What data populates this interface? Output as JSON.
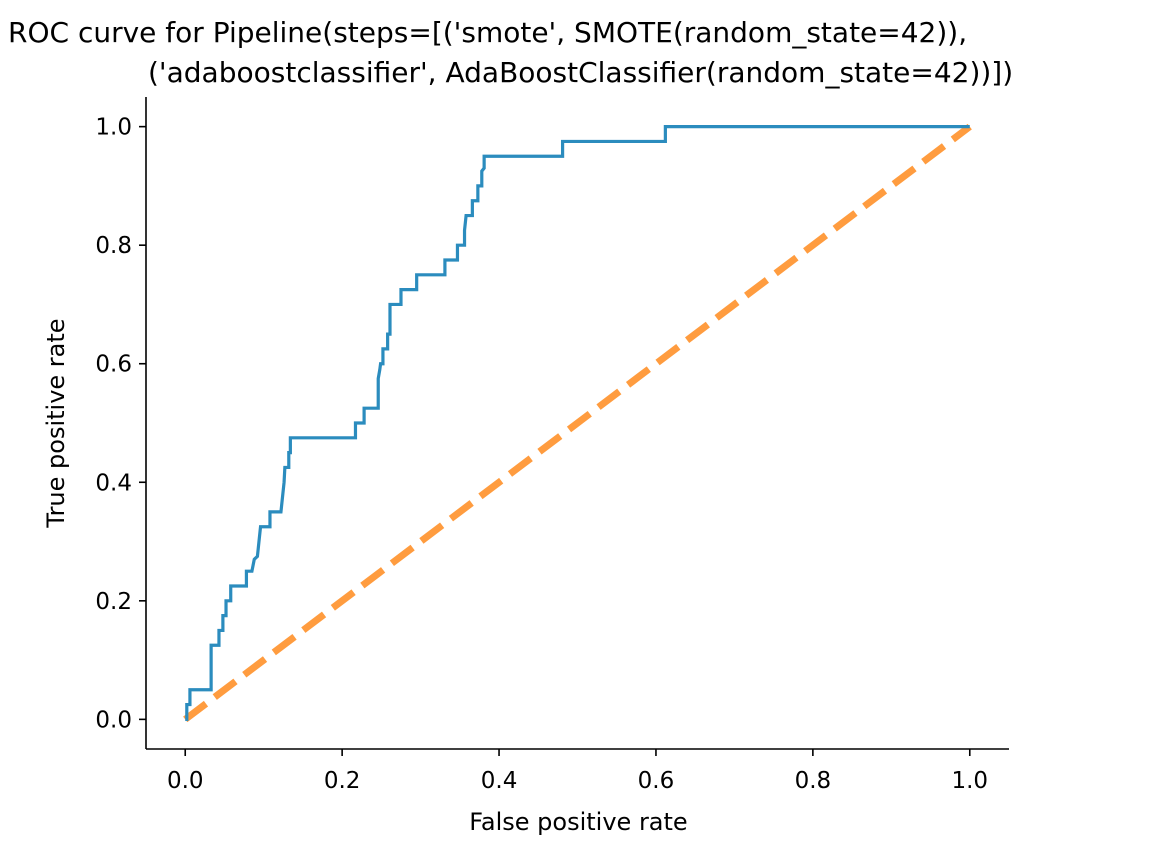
{
  "chart_data": {
    "type": "line",
    "title_lines": [
      "ROC curve for Pipeline(steps=[('smote', SMOTE(random_state=42)),",
      "('adaboostclassifier', AdaBoostClassifier(random_state=42))])"
    ],
    "xlabel": "False positive rate",
    "ylabel": "True positive rate",
    "xlim": [
      -0.05,
      1.05
    ],
    "ylim": [
      -0.05,
      1.05
    ],
    "xticks": [
      0.0,
      0.2,
      0.4,
      0.6,
      0.8,
      1.0
    ],
    "yticks": [
      0.0,
      0.2,
      0.4,
      0.6,
      0.8,
      1.0
    ],
    "tick_labels": [
      "0.0",
      "0.2",
      "0.4",
      "0.6",
      "0.8",
      "1.0"
    ],
    "grid": false,
    "series": [
      {
        "color": "#2b8cbe",
        "style": "solid",
        "points": [
          [
            0.0,
            0.0
          ],
          [
            0.002,
            0.0
          ],
          [
            0.002,
            0.025
          ],
          [
            0.006,
            0.025
          ],
          [
            0.006,
            0.05
          ],
          [
            0.033,
            0.05
          ],
          [
            0.033,
            0.125
          ],
          [
            0.043,
            0.125
          ],
          [
            0.043,
            0.15
          ],
          [
            0.048,
            0.15
          ],
          [
            0.048,
            0.175
          ],
          [
            0.052,
            0.175
          ],
          [
            0.052,
            0.2
          ],
          [
            0.058,
            0.2
          ],
          [
            0.058,
            0.225
          ],
          [
            0.078,
            0.225
          ],
          [
            0.078,
            0.25
          ],
          [
            0.085,
            0.25
          ],
          [
            0.088,
            0.27
          ],
          [
            0.092,
            0.275
          ],
          [
            0.094,
            0.3
          ],
          [
            0.096,
            0.325
          ],
          [
            0.108,
            0.325
          ],
          [
            0.108,
            0.35
          ],
          [
            0.122,
            0.35
          ],
          [
            0.124,
            0.375
          ],
          [
            0.126,
            0.4
          ],
          [
            0.127,
            0.425
          ],
          [
            0.132,
            0.425
          ],
          [
            0.132,
            0.45
          ],
          [
            0.134,
            0.45
          ],
          [
            0.134,
            0.475
          ],
          [
            0.217,
            0.475
          ],
          [
            0.217,
            0.5
          ],
          [
            0.228,
            0.5
          ],
          [
            0.228,
            0.525
          ],
          [
            0.246,
            0.525
          ],
          [
            0.246,
            0.575
          ],
          [
            0.248,
            0.59
          ],
          [
            0.249,
            0.6
          ],
          [
            0.252,
            0.6
          ],
          [
            0.252,
            0.625
          ],
          [
            0.258,
            0.625
          ],
          [
            0.258,
            0.65
          ],
          [
            0.261,
            0.65
          ],
          [
            0.261,
            0.7
          ],
          [
            0.275,
            0.7
          ],
          [
            0.275,
            0.725
          ],
          [
            0.295,
            0.725
          ],
          [
            0.295,
            0.75
          ],
          [
            0.331,
            0.75
          ],
          [
            0.331,
            0.775
          ],
          [
            0.347,
            0.775
          ],
          [
            0.347,
            0.8
          ],
          [
            0.356,
            0.8
          ],
          [
            0.356,
            0.825
          ],
          [
            0.358,
            0.85
          ],
          [
            0.366,
            0.85
          ],
          [
            0.366,
            0.875
          ],
          [
            0.373,
            0.875
          ],
          [
            0.373,
            0.9
          ],
          [
            0.378,
            0.9
          ],
          [
            0.378,
            0.925
          ],
          [
            0.381,
            0.93
          ],
          [
            0.381,
            0.95
          ],
          [
            0.481,
            0.95
          ],
          [
            0.481,
            0.975
          ],
          [
            0.612,
            0.975
          ],
          [
            0.612,
            1.0
          ],
          [
            1.0,
            1.0
          ]
        ]
      },
      {
        "color": "#ff912a",
        "style": "dashed",
        "points": [
          [
            0.0,
            0.0
          ],
          [
            1.0,
            1.0
          ]
        ]
      }
    ]
  }
}
